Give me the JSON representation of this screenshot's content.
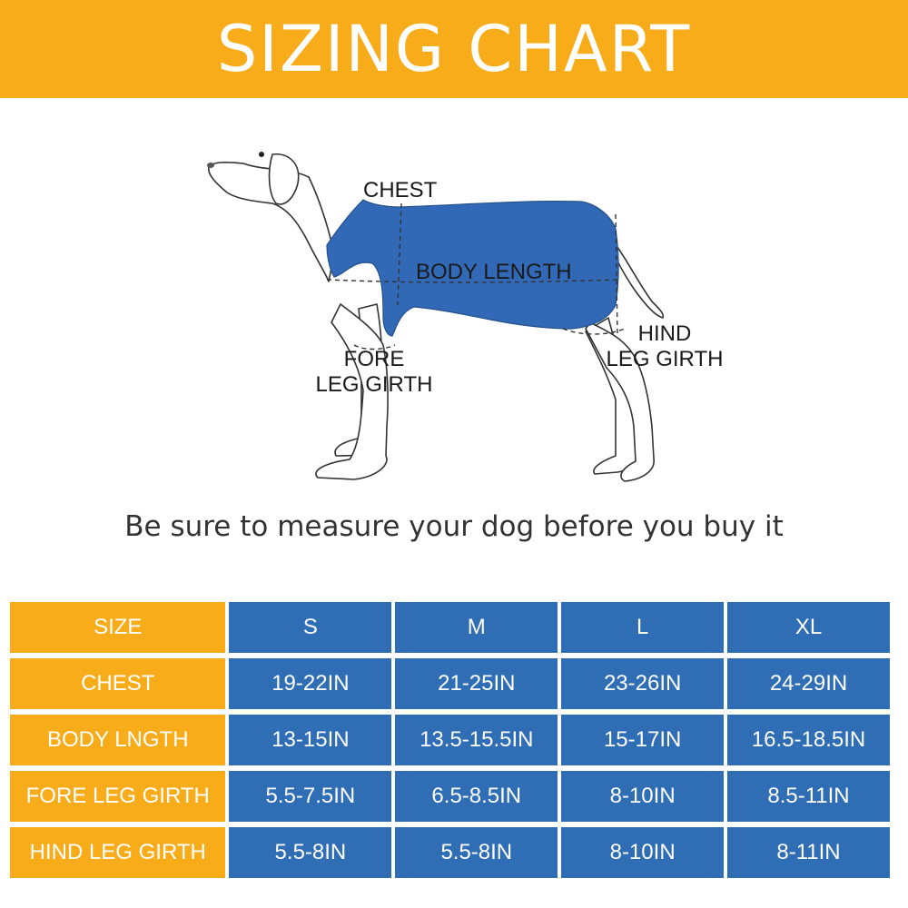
{
  "banner": {
    "title": "SIZING CHART",
    "color": "#f8ac1a"
  },
  "diagram": {
    "labels": {
      "chest": "CHEST",
      "body_length": "BODY LENGTH",
      "fore_leg_girth": [
        "FORE",
        "LEG GIRTH"
      ],
      "hind_leg_girth": [
        "HIND",
        "LEG GIRTH"
      ]
    },
    "garment_color": "#3269b6"
  },
  "subtitle": "Be sure to measure your dog before you buy it",
  "table": {
    "header": [
      "SIZE",
      "S",
      "M",
      "L",
      "XL"
    ],
    "rows": [
      [
        "CHEST",
        "19-22IN",
        "21-25IN",
        "23-26IN",
        "24-29IN"
      ],
      [
        "BODY LNGTH",
        "13-15IN",
        "13.5-15.5IN",
        "15-17IN",
        "16.5-18.5IN"
      ],
      [
        "FORE LEG GIRTH",
        "5.5-7.5IN",
        "6.5-8.5IN",
        "8-10IN",
        "8.5-11IN"
      ],
      [
        "HIND LEG GIRTH",
        "5.5-8IN",
        "5.5-8IN",
        "8-10IN",
        "8-11IN"
      ]
    ],
    "label_color": "#f8ac1a",
    "value_color": "#2f6eb5"
  }
}
